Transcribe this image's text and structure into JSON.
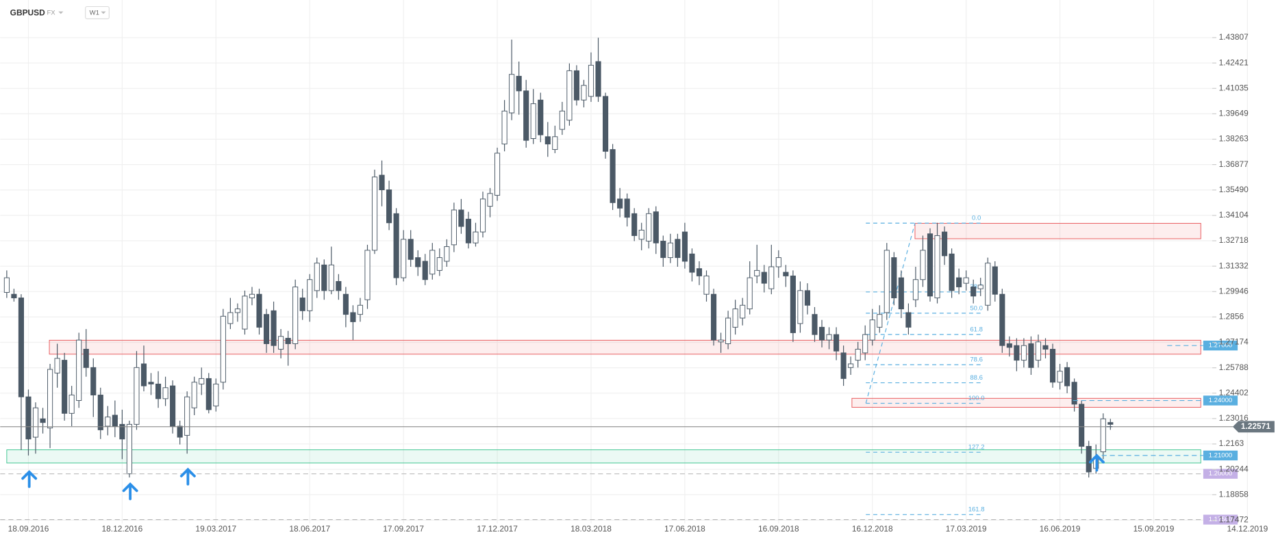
{
  "header": {
    "symbol": "GBPUSD",
    "market": "FX",
    "interval": "W1"
  },
  "chart_data": {
    "type": "candlestick",
    "categories": [
      null,
      null,
      null,
      "18.09.2016",
      null,
      null,
      null,
      null,
      null,
      null,
      null,
      null,
      null,
      null,
      null,
      null,
      "18.12.2016",
      null,
      null,
      null,
      null,
      null,
      null,
      null,
      null,
      null,
      null,
      null,
      null,
      "19.03.2017",
      null,
      null,
      null,
      null,
      null,
      null,
      null,
      null,
      null,
      null,
      null,
      null,
      "18.06.2017",
      null,
      null,
      null,
      null,
      null,
      null,
      null,
      null,
      null,
      null,
      null,
      null,
      "17.09.2017",
      null,
      null,
      null,
      null,
      null,
      null,
      null,
      null,
      null,
      null,
      null,
      null,
      "17.12.2017",
      null,
      null,
      null,
      null,
      null,
      null,
      null,
      null,
      null,
      null,
      null,
      null,
      "18.03.2018",
      null,
      null,
      null,
      null,
      null,
      null,
      null,
      null,
      null,
      null,
      null,
      null,
      "17.06.2018",
      null,
      null,
      null,
      null,
      null,
      null,
      null,
      null,
      null,
      null,
      null,
      null,
      "16.09.2018",
      null,
      null,
      null,
      null,
      null,
      null,
      null,
      null,
      null,
      null,
      null,
      null,
      "16.12.2018",
      null,
      null,
      null,
      null,
      null,
      null,
      null,
      null,
      null,
      null,
      null,
      null,
      "17.03.2019",
      null,
      null,
      null,
      null,
      null,
      null,
      null,
      null,
      null,
      null,
      null,
      null,
      "16.06.2019",
      null,
      null,
      null,
      null,
      null,
      null,
      null,
      null,
      null,
      null,
      null,
      null,
      "15.09.2019",
      null,
      null,
      null,
      null,
      null,
      null,
      null,
      null,
      null,
      null,
      null,
      null,
      "14.12.2019"
    ],
    "open": [
      1.299,
      1.298,
      1.296,
      1.242,
      1.22,
      1.23,
      1.225,
      1.255,
      1.262,
      1.233,
      1.24,
      1.268,
      1.258,
      1.243,
      1.226,
      1.232,
      1.227,
      1.2,
      1.227,
      1.26,
      1.25,
      1.249,
      1.241,
      1.248,
      1.226,
      1.221,
      1.236,
      1.249,
      1.252,
      1.237,
      1.25,
      1.282,
      1.288,
      1.279,
      1.296,
      1.298,
      1.287,
      1.289,
      1.268,
      1.274,
      1.271,
      1.296,
      1.289,
      1.3,
      1.314,
      1.3,
      1.305,
      1.298,
      1.288,
      1.287,
      1.295,
      1.322,
      1.363,
      1.355,
      1.342,
      1.307,
      1.328,
      1.318,
      1.316,
      1.309,
      1.311,
      1.316,
      1.325,
      1.344,
      1.339,
      1.326,
      1.332,
      1.346,
      1.352,
      1.38,
      1.397,
      1.417,
      1.409,
      1.383,
      1.404,
      1.384,
      1.377,
      1.388,
      1.393,
      1.42,
      1.404,
      1.406,
      1.425,
      1.406,
      1.377,
      1.35,
      1.35,
      1.342,
      1.328,
      1.327,
      1.343,
      1.327,
      1.318,
      1.328,
      1.332,
      1.32,
      1.312,
      1.298,
      1.298,
      1.272,
      1.271,
      1.28,
      1.285,
      1.29,
      1.308,
      1.31,
      1.301,
      1.313,
      1.31,
      1.308,
      1.282,
      1.3,
      1.287,
      1.28,
      1.273,
      1.276,
      1.266,
      1.258,
      1.262,
      1.266,
      1.273,
      1.28,
      1.288,
      1.318,
      1.307,
      1.288,
      1.295,
      1.306,
      1.331,
      1.296,
      1.332,
      1.32,
      1.307,
      1.304,
      1.302,
      1.301,
      1.292,
      1.313,
      1.298,
      1.271,
      1.27,
      1.262,
      1.271,
      1.262,
      1.27,
      1.268,
      1.25,
      1.258,
      1.25,
      1.238,
      1.215,
      1.203,
      1.212,
      1.228,
      null,
      null,
      null,
      null,
      null,
      null,
      null,
      null,
      null,
      null,
      null,
      null,
      null,
      null,
      null,
      null,
      null,
      null,
      null
    ],
    "high": [
      1.311,
      1.301,
      1.298,
      1.246,
      1.239,
      1.236,
      1.26,
      1.271,
      1.266,
      1.248,
      1.277,
      1.279,
      1.263,
      1.247,
      1.237,
      1.24,
      1.235,
      1.229,
      1.267,
      1.27,
      1.255,
      1.256,
      1.253,
      1.251,
      1.229,
      1.245,
      1.253,
      1.258,
      1.255,
      1.252,
      1.29,
      1.296,
      1.293,
      1.3,
      1.302,
      1.301,
      1.29,
      1.294,
      1.279,
      1.278,
      1.306,
      1.301,
      1.309,
      1.318,
      1.317,
      1.324,
      1.309,
      1.302,
      1.292,
      1.296,
      1.325,
      1.366,
      1.371,
      1.36,
      1.345,
      1.333,
      1.333,
      1.322,
      1.32,
      1.326,
      1.323,
      1.328,
      1.348,
      1.35,
      1.343,
      1.337,
      1.354,
      1.356,
      1.378,
      1.404,
      1.437,
      1.425,
      1.415,
      1.41,
      1.408,
      1.392,
      1.39,
      1.403,
      1.424,
      1.423,
      1.415,
      1.43,
      1.438,
      1.408,
      1.38,
      1.356,
      1.353,
      1.345,
      1.337,
      1.345,
      1.346,
      1.33,
      1.331,
      1.331,
      1.337,
      1.323,
      1.316,
      1.311,
      1.301,
      1.277,
      1.289,
      1.295,
      1.296,
      1.316,
      1.325,
      1.314,
      1.325,
      1.322,
      1.314,
      1.311,
      1.305,
      1.304,
      1.291,
      1.284,
      1.28,
      1.28,
      1.27,
      1.264,
      1.272,
      1.281,
      1.29,
      1.292,
      1.326,
      1.321,
      1.311,
      1.293,
      1.313,
      1.33,
      1.334,
      1.337,
      1.335,
      1.323,
      1.312,
      1.311,
      1.306,
      1.307,
      1.318,
      1.316,
      1.301,
      1.275,
      1.274,
      1.274,
      1.275,
      1.276,
      1.274,
      1.271,
      1.26,
      1.261,
      1.252,
      1.24,
      1.218,
      1.216,
      1.233,
      1.23,
      null,
      null,
      null,
      null,
      null,
      null,
      null,
      null,
      null,
      null,
      null,
      null,
      null,
      null,
      null,
      null,
      null,
      null,
      null
    ],
    "low": [
      1.296,
      1.294,
      1.213,
      1.21,
      1.211,
      1.222,
      1.214,
      1.247,
      1.229,
      1.226,
      1.236,
      1.253,
      1.231,
      1.219,
      1.221,
      1.22,
      1.208,
      1.198,
      1.224,
      1.245,
      1.243,
      1.236,
      1.237,
      1.222,
      1.216,
      1.211,
      1.232,
      1.243,
      1.233,
      1.234,
      1.246,
      1.279,
      1.283,
      1.276,
      1.292,
      1.276,
      1.266,
      1.266,
      1.263,
      1.259,
      1.268,
      1.284,
      1.283,
      1.296,
      1.295,
      1.298,
      1.295,
      1.28,
      1.273,
      1.283,
      1.29,
      1.32,
      1.346,
      1.333,
      1.303,
      1.305,
      1.313,
      1.308,
      1.303,
      1.306,
      1.308,
      1.313,
      1.321,
      1.331,
      1.323,
      1.324,
      1.329,
      1.34,
      1.349,
      1.376,
      1.393,
      1.396,
      1.378,
      1.38,
      1.381,
      1.373,
      1.375,
      1.385,
      1.39,
      1.401,
      1.4,
      1.403,
      1.403,
      1.372,
      1.344,
      1.34,
      1.335,
      1.327,
      1.322,
      1.323,
      1.32,
      1.313,
      1.315,
      1.313,
      1.312,
      1.305,
      1.303,
      1.294,
      1.27,
      1.266,
      1.268,
      1.276,
      1.281,
      1.287,
      1.304,
      1.299,
      1.298,
      1.307,
      1.302,
      1.272,
      1.277,
      1.287,
      1.272,
      1.269,
      1.268,
      1.262,
      1.248,
      1.254,
      1.258,
      1.262,
      1.27,
      1.277,
      1.284,
      1.292,
      1.285,
      1.276,
      1.291,
      1.302,
      1.294,
      1.293,
      1.314,
      1.296,
      1.298,
      1.3,
      1.293,
      1.297,
      1.289,
      1.294,
      1.266,
      1.264,
      1.256,
      1.258,
      1.254,
      1.258,
      1.263,
      1.247,
      1.246,
      1.244,
      1.234,
      1.211,
      1.198,
      1.2,
      1.208,
      1.224,
      null,
      null,
      null,
      null,
      null,
      null,
      null,
      null,
      null,
      null,
      null,
      null,
      null,
      null,
      null,
      null,
      null,
      null,
      null
    ],
    "close": [
      1.307,
      1.296,
      1.242,
      1.219,
      1.236,
      1.228,
      1.257,
      1.263,
      1.233,
      1.243,
      1.273,
      1.258,
      1.243,
      1.224,
      1.231,
      1.226,
      1.219,
      1.227,
      1.258,
      1.248,
      1.249,
      1.241,
      1.247,
      1.226,
      1.22,
      1.242,
      1.25,
      1.252,
      1.235,
      1.249,
      1.286,
      1.288,
      1.29,
      1.297,
      1.298,
      1.28,
      1.271,
      1.27,
      1.275,
      1.271,
      1.302,
      1.289,
      1.306,
      1.315,
      1.3,
      1.314,
      1.3,
      1.287,
      1.283,
      1.292,
      1.322,
      1.362,
      1.355,
      1.337,
      1.307,
      1.328,
      1.317,
      1.313,
      1.306,
      1.322,
      1.318,
      1.324,
      1.344,
      1.335,
      1.326,
      1.332,
      1.35,
      1.353,
      1.375,
      1.398,
      1.418,
      1.409,
      1.382,
      1.402,
      1.385,
      1.38,
      1.384,
      1.398,
      1.42,
      1.404,
      1.412,
      1.423,
      1.406,
      1.376,
      1.348,
      1.345,
      1.34,
      1.33,
      1.333,
      1.342,
      1.326,
      1.318,
      1.326,
      1.318,
      1.316,
      1.31,
      1.308,
      1.308,
      1.273,
      1.273,
      1.285,
      1.29,
      1.292,
      1.307,
      1.311,
      1.304,
      1.313,
      1.318,
      1.308,
      1.277,
      1.3,
      1.292,
      1.276,
      1.273,
      1.276,
      1.267,
      1.252,
      1.26,
      1.268,
      1.276,
      1.284,
      1.287,
      1.322,
      1.296,
      1.29,
      1.28,
      1.306,
      1.322,
      1.297,
      1.33,
      1.319,
      1.3,
      1.302,
      1.307,
      1.297,
      1.303,
      1.315,
      1.298,
      1.27,
      1.269,
      1.262,
      1.27,
      1.258,
      1.272,
      1.268,
      1.25,
      1.256,
      1.248,
      1.238,
      1.215,
      1.201,
      1.209,
      1.23,
      1.227,
      null,
      null,
      null,
      null,
      null,
      null,
      null,
      null,
      null,
      null,
      null,
      null,
      null,
      null,
      null,
      null,
      null,
      null,
      null
    ],
    "up_color": "#ffffff",
    "down_color": "#4b5966",
    "wick_color": "#4b5966",
    "ylim": [
      1.1729,
      1.4586
    ],
    "yticks": [
      1.43807,
      1.42421,
      1.41035,
      1.39649,
      1.38263,
      1.36877,
      {
        "value": 1.3549,
        "label": "1.35490"
      },
      1.34104,
      1.32718,
      1.31332,
      1.29946,
      1.2856,
      1.27174,
      1.25788,
      1.24402,
      1.23016,
      1.2163,
      1.20244,
      1.18858,
      1.17472
    ],
    "grid": true,
    "current_price": 1.22571,
    "zones": [
      {
        "low": 1.2653,
        "high": 1.2729,
        "color": "#e8575a"
      },
      {
        "low": 1.2363,
        "high": 1.2412,
        "color": "#e8575a"
      },
      {
        "low": 1.3283,
        "high": 1.3367,
        "color": "#e8575a"
      },
      {
        "low": 1.2059,
        "high": 1.2131,
        "color": "#3cc48f"
      }
    ],
    "levels": [
      {
        "price": {
          "value": 1.27,
          "label": "1.27000"
        },
        "color": "#5aafe0"
      },
      {
        "price": {
          "value": 1.24,
          "label": "1.24000"
        },
        "color": "#5aafe0"
      },
      {
        "price": {
          "value": 1.21,
          "label": "1.21000"
        },
        "color": "#5aafe0"
      },
      {
        "price": {
          "value": 1.2,
          "label": "1.20000"
        },
        "color": "#c4b0e6"
      },
      {
        "price": {
          "value": 1.175,
          "label": "1.17500"
        },
        "color": "#c4b0e6"
      }
    ],
    "fib": {
      "start": 1.3368,
      "end": 1.2385,
      "color": "#5aafe0",
      "levels": [
        {
          "value": 0,
          "label": "0.0"
        },
        38.2,
        {
          "value": 50,
          "label": "50.0"
        },
        61.8,
        78.6,
        88.6,
        {
          "value": 100,
          "label": "100.0"
        },
        127.2,
        161.8
      ]
    }
  }
}
